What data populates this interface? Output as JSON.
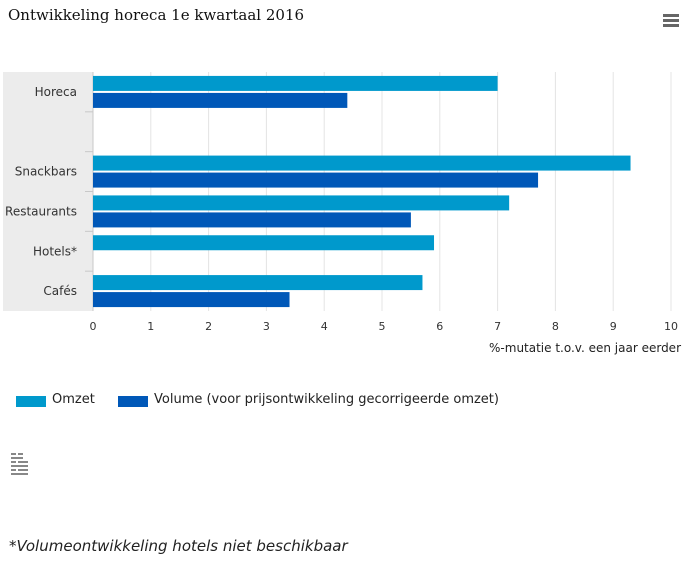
{
  "chart_data": {
    "type": "bar",
    "orientation": "horizontal",
    "title": "Ontwikkeling horeca 1e kwartaal 2016",
    "xlabel": "%-mutatie t.o.v. een jaar eerder",
    "ylabel": "",
    "xlim": [
      0,
      10
    ],
    "ticks": [
      "0",
      "1",
      "2",
      "3",
      "4",
      "5",
      "6",
      "7",
      "8",
      "9",
      "10"
    ],
    "categories": [
      "Horeca",
      "",
      "Snackbars",
      "Restaurants",
      "Hotels*",
      "Cafés"
    ],
    "series": [
      {
        "name": "Omzet",
        "color": "#0099cc",
        "values": [
          7.0,
          null,
          9.3,
          7.2,
          5.9,
          5.7
        ]
      },
      {
        "name": "Volume (voor prijsontwikkeling gecorrigeerde omzet)",
        "color": "#0058b8",
        "values": [
          4.4,
          null,
          7.7,
          5.5,
          null,
          3.4
        ]
      }
    ],
    "grid": true,
    "legend_position": "bottom-left"
  },
  "icons": {
    "menu": "hamburger-menu-icon",
    "logo": "cbs-logo-icon"
  },
  "footnote": "*Volumeontwikkeling hotels niet beschikbaar"
}
